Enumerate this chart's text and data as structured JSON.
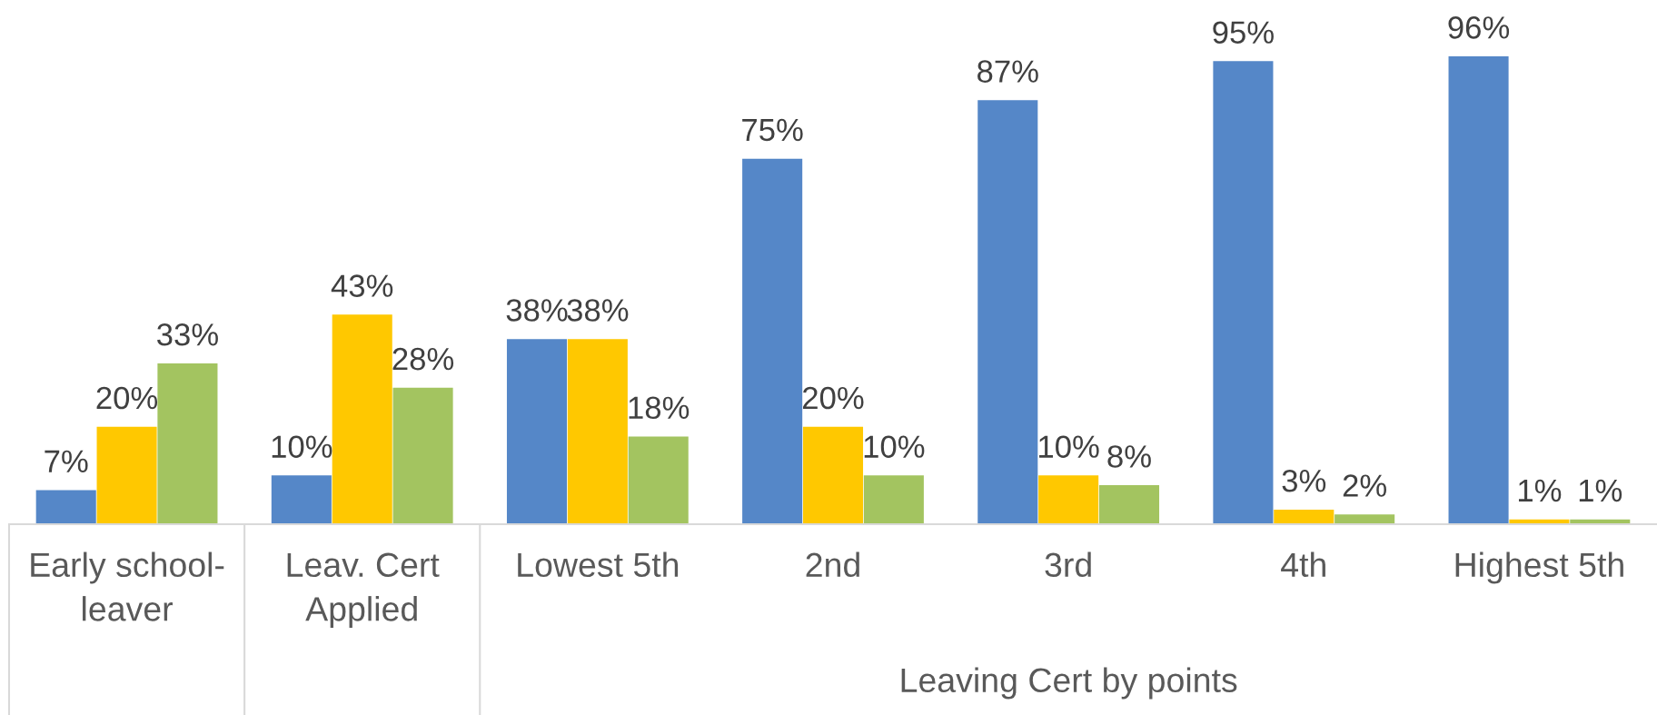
{
  "chart_data": {
    "type": "bar",
    "categories": [
      "Early school-\nleaver",
      "Leav. Cert\nApplied",
      "Lowest 5th",
      "2nd",
      "3rd",
      "4th",
      "Highest 5th"
    ],
    "xlabel": "Leaving Cert by points",
    "tick_labels": "x",
    "series": [
      {
        "color": "#5587c8",
        "values": [
          7,
          10,
          38,
          75,
          87,
          95,
          96
        ],
        "value_labels": [
          "7%",
          "10%",
          "38%",
          "75%",
          "87%",
          "95%",
          "96%"
        ]
      },
      {
        "color": "#ffc800",
        "values": [
          20,
          43,
          38,
          20,
          10,
          3,
          1
        ],
        "value_labels": [
          "20%",
          "43%",
          "38%",
          "20%",
          "10%",
          "3%",
          "1%"
        ]
      },
      {
        "color": "#a3c460",
        "values": [
          33,
          28,
          18,
          10,
          8,
          2,
          1
        ],
        "value_labels": [
          "33%",
          "28%",
          "18%",
          "10%",
          "8%",
          "2%",
          "1%"
        ]
      }
    ]
  }
}
